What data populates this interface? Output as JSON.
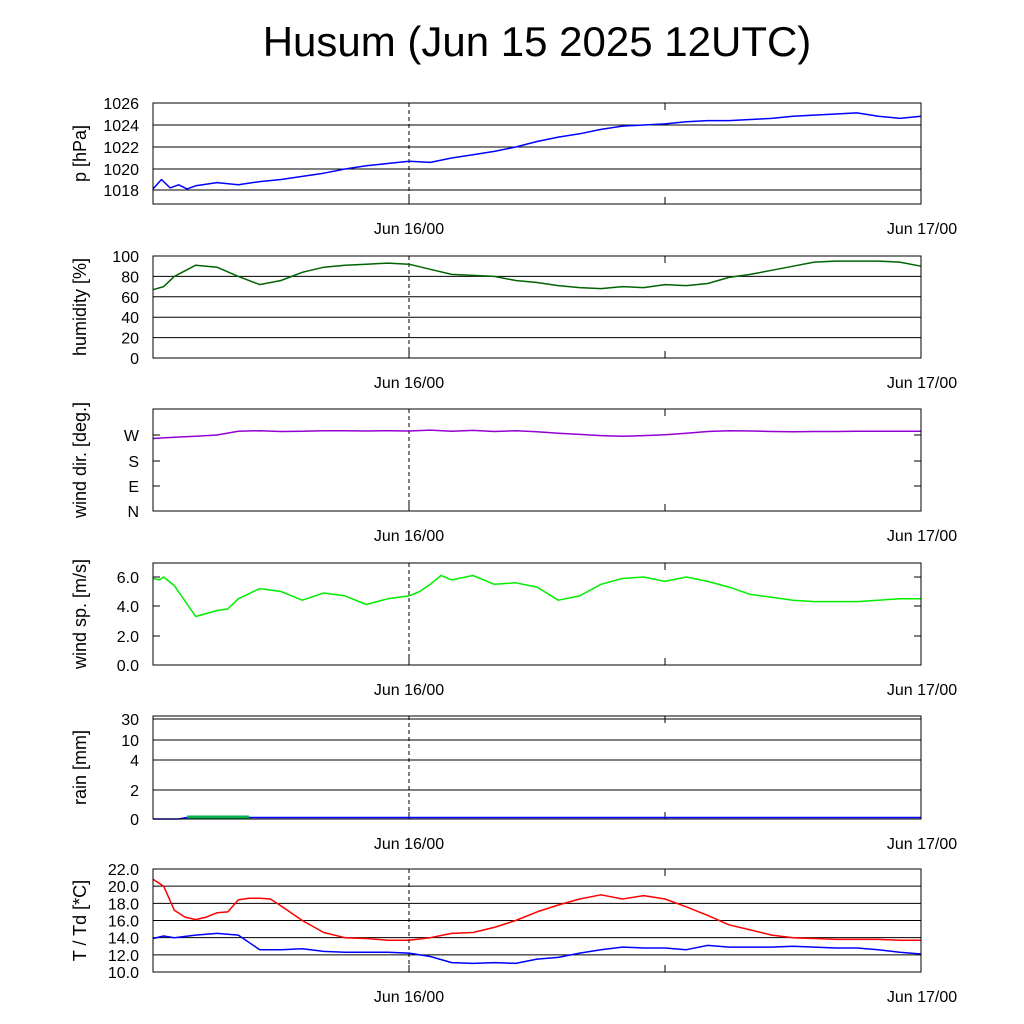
{
  "title": "Husum (Jun 15 2025 12UTC)",
  "x_axis": {
    "labels": [
      "Jun 16/00",
      "Jun 17/00"
    ]
  },
  "colors": {
    "pressure": "#0000ff",
    "humidity": "#006400",
    "wind_dir": "#9400d3",
    "wind_speed": "#00ee00",
    "rain_green": "#00b050",
    "rain_blue": "#0000ff",
    "temperature": "#ff0000",
    "dewpoint": "#0000ff"
  },
  "chart_data": [
    {
      "type": "line",
      "id": "pressure",
      "ylabel": "p [hPa]",
      "ylim": [
        1016.7,
        1026.3
      ],
      "yticks": [
        "1026",
        "1024",
        "1022",
        "1020",
        "1018"
      ],
      "ytick_values": [
        1026,
        1024,
        1022,
        1020,
        1018
      ],
      "grid": true,
      "series": [
        {
          "x": [
            0,
            0.4,
            0.8,
            1.2,
            1.6,
            2,
            3,
            4,
            5,
            6,
            7,
            8,
            9,
            10,
            11,
            12,
            13,
            14,
            15,
            16,
            17,
            18,
            19,
            20,
            21,
            22,
            23,
            24,
            25,
            26,
            27,
            28,
            29,
            30,
            31,
            32,
            33,
            34,
            35,
            36
          ],
          "values": [
            1018.1,
            1019.0,
            1018.2,
            1018.5,
            1018.1,
            1018.4,
            1018.7,
            1018.5,
            1018.8,
            1019.0,
            1019.3,
            1019.6,
            1020.0,
            1020.3,
            1020.5,
            1020.7,
            1020.6,
            1021.0,
            1021.3,
            1021.6,
            1022.0,
            1022.5,
            1022.9,
            1023.2,
            1023.6,
            1023.9,
            1024.0,
            1024.1,
            1024.3,
            1024.4,
            1024.4,
            1024.5,
            1024.6,
            1024.8,
            1024.9,
            1025.0,
            1025.1,
            1024.8,
            1024.6,
            1024.8
          ]
        }
      ]
    },
    {
      "type": "line",
      "id": "humidity",
      "ylabel": "humidity [%]",
      "ylim": [
        0,
        100
      ],
      "yticks": [
        "100",
        "80",
        "60",
        "40",
        "20",
        "0"
      ],
      "ytick_values": [
        100,
        80,
        60,
        40,
        20,
        0
      ],
      "grid": true,
      "series": [
        {
          "x": [
            0,
            0.5,
            1,
            2,
            3,
            4,
            5,
            6,
            7,
            8,
            9,
            10,
            11,
            12,
            13,
            14,
            15,
            16,
            17,
            18,
            19,
            20,
            21,
            22,
            23,
            24,
            25,
            26,
            27,
            28,
            29,
            30,
            31,
            32,
            33,
            34,
            35,
            36
          ],
          "values": [
            67,
            70,
            80,
            91,
            89,
            80,
            72,
            76,
            84,
            89,
            91,
            92,
            93,
            92,
            87,
            82,
            81,
            80,
            76,
            74,
            71,
            69,
            68,
            70,
            69,
            72,
            71,
            73,
            79,
            82,
            86,
            90,
            94,
            95,
            95,
            95,
            94,
            90
          ]
        }
      ]
    },
    {
      "type": "line",
      "id": "wind_dir",
      "ylabel": "wind dir. [deg.]",
      "ylim": [
        0,
        360
      ],
      "yticks": [
        "W",
        "S",
        "E",
        "N"
      ],
      "ytick_values": [
        270,
        180,
        90,
        0
      ],
      "grid": false,
      "series": [
        {
          "x": [
            0,
            1,
            2,
            3,
            4,
            5,
            6,
            7,
            8,
            9,
            10,
            11,
            12,
            13,
            14,
            15,
            16,
            17,
            18,
            19,
            20,
            21,
            22,
            23,
            24,
            25,
            26,
            27,
            28,
            29,
            30,
            31,
            32,
            33,
            34,
            35,
            36
          ],
          "values": [
            258,
            262,
            266,
            270,
            283,
            285,
            282,
            283,
            285,
            285,
            284,
            285,
            284,
            287,
            283,
            286,
            282,
            285,
            281,
            276,
            272,
            268,
            266,
            268,
            271,
            276,
            282,
            285,
            284,
            282,
            281,
            282,
            282,
            283,
            283,
            283,
            283
          ]
        }
      ]
    },
    {
      "type": "line",
      "id": "wind_speed",
      "ylabel": "wind sp. [m/s]",
      "ylim": [
        0,
        6.9
      ],
      "yticks": [
        "6.0",
        "4.0",
        "2.0",
        "0.0"
      ],
      "ytick_values": [
        6,
        4,
        2,
        0
      ],
      "grid": false,
      "series": [
        {
          "x": [
            0,
            0.3,
            0.5,
            1,
            2,
            3,
            3.5,
            4,
            5,
            6,
            7,
            8,
            9,
            10,
            11,
            12,
            12.5,
            13,
            13.5,
            14,
            15,
            16,
            17,
            18,
            19,
            20,
            21,
            22,
            23,
            24,
            25,
            26,
            27,
            28,
            29,
            30,
            31,
            32,
            33,
            34,
            35,
            36
          ],
          "values": [
            5.9,
            5.8,
            6.0,
            5.4,
            3.3,
            3.7,
            3.8,
            4.5,
            5.2,
            5.0,
            4.4,
            4.9,
            4.7,
            4.1,
            4.5,
            4.7,
            5.0,
            5.5,
            6.1,
            5.8,
            6.1,
            5.5,
            5.6,
            5.3,
            4.4,
            4.7,
            5.5,
            5.9,
            6.0,
            5.7,
            6.0,
            5.7,
            5.3,
            4.8,
            4.6,
            4.4,
            4.3,
            4.3,
            4.3,
            4.4,
            4.5,
            4.5
          ]
        }
      ]
    },
    {
      "type": "area",
      "id": "rain",
      "ylabel": "rain [mm]",
      "yticks": [
        "30",
        "10",
        "4",
        "2",
        "0"
      ],
      "ytick_values": [
        30,
        10,
        4,
        2,
        0
      ],
      "grid": true,
      "series": [
        {
          "x": [
            0,
            1.2,
            1.6,
            4.5,
            36
          ],
          "values": [
            0,
            0,
            0.1,
            0.1,
            0.1
          ]
        },
        {
          "x": [
            1.6,
            4.5
          ],
          "values": [
            0.1,
            0.1
          ]
        }
      ]
    },
    {
      "type": "line",
      "id": "temperature",
      "ylabel": "T / Td [*C]",
      "ylim": [
        10,
        22
      ],
      "yticks": [
        "22.0",
        "20.0",
        "18.0",
        "16.0",
        "14.0",
        "12.0",
        "10.0"
      ],
      "ytick_values": [
        22,
        20,
        18,
        16,
        14,
        12,
        10
      ],
      "grid": true,
      "series": [
        {
          "x": [
            0,
            0.5,
            1,
            1.5,
            2,
            2.5,
            3,
            3.5,
            4,
            4.5,
            5,
            5.5,
            6,
            7,
            8,
            9,
            10,
            11,
            12,
            13,
            14,
            15,
            16,
            17,
            18,
            19,
            20,
            21,
            22,
            23,
            24,
            25,
            26,
            27,
            28,
            29,
            30,
            31,
            32,
            33,
            34,
            35,
            36
          ],
          "values": [
            20.8,
            20.0,
            17.2,
            16.4,
            16.1,
            16.4,
            16.9,
            17.0,
            18.4,
            18.6,
            18.6,
            18.5,
            17.7,
            16.0,
            14.6,
            14.0,
            13.9,
            13.7,
            13.7,
            14.0,
            14.5,
            14.6,
            15.2,
            16.0,
            17.0,
            17.8,
            18.5,
            19.0,
            18.5,
            18.9,
            18.5,
            17.6,
            16.6,
            15.5,
            14.9,
            14.3,
            14.0,
            13.9,
            13.8,
            13.8,
            13.8,
            13.7,
            13.7
          ]
        },
        {
          "x": [
            0,
            0.5,
            1,
            2,
            3,
            4,
            5,
            6,
            7,
            8,
            9,
            10,
            11,
            12,
            13,
            14,
            15,
            16,
            17,
            18,
            19,
            20,
            21,
            22,
            23,
            24,
            25,
            26,
            27,
            28,
            29,
            30,
            31,
            32,
            33,
            34,
            35,
            36
          ],
          "values": [
            13.9,
            14.2,
            14.0,
            14.3,
            14.5,
            14.3,
            12.6,
            12.6,
            12.7,
            12.4,
            12.3,
            12.3,
            12.3,
            12.2,
            11.8,
            11.1,
            11.0,
            11.1,
            11.0,
            11.5,
            11.7,
            12.2,
            12.6,
            12.9,
            12.8,
            12.8,
            12.6,
            13.1,
            12.9,
            12.9,
            12.9,
            13.0,
            12.9,
            12.8,
            12.8,
            12.6,
            12.3,
            12.1
          ]
        }
      ]
    }
  ]
}
